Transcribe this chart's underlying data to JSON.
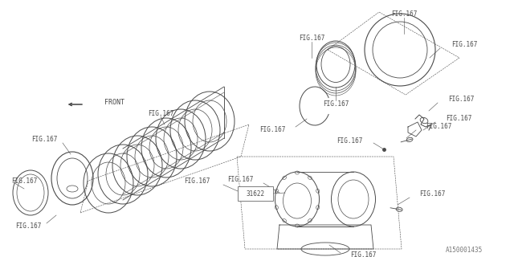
{
  "bg_color": "#ffffff",
  "lc": "#4a4a4a",
  "tc": "#4a4a4a",
  "watermark": "A150001435",
  "part_label": "31622",
  "fig_label": "FIG.167",
  "front_label": "FRONT",
  "lw_main": 0.8,
  "lw_thin": 0.5,
  "lw_dash": 0.4,
  "fs_label": 5.5,
  "fs_part": 5.5
}
